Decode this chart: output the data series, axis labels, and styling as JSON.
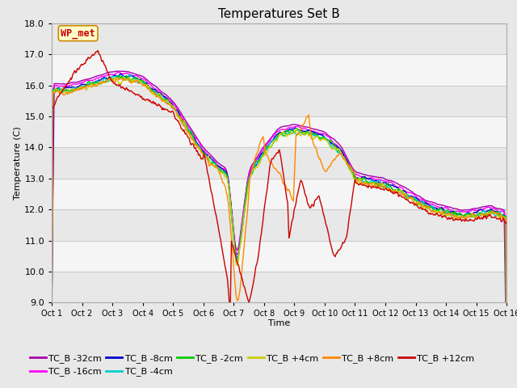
{
  "title": "Temperatures Set B",
  "xlabel": "Time",
  "ylabel": "Temperature (C)",
  "ylim": [
    9.0,
    18.0
  ],
  "yticks": [
    9.0,
    10.0,
    11.0,
    12.0,
    13.0,
    14.0,
    15.0,
    16.0,
    17.0,
    18.0
  ],
  "xtick_labels": [
    "Oct 1",
    "Oct 2",
    "Oct 3",
    "Oct 4",
    "Oct 5",
    "Oct 6",
    "Oct 7",
    "Oct 8",
    "Oct 9",
    "Oct 10",
    "Oct 11",
    "Oct 12",
    "Oct 13",
    "Oct 14",
    "Oct 15",
    "Oct 16"
  ],
  "bg_color": "#e8e8e8",
  "plot_bg_color": "#ffffff",
  "grid_color": "#cccccc",
  "wp_met_label": "WP_met",
  "wp_met_text_color": "#cc0000",
  "wp_met_bg": "#ffffcc",
  "wp_met_edge": "#cc8800",
  "series": [
    {
      "label": "TC_B -32cm",
      "color": "#aa00aa"
    },
    {
      "label": "TC_B -16cm",
      "color": "#ff00ff"
    },
    {
      "label": "TC_B -8cm",
      "color": "#0000cc"
    },
    {
      "label": "TC_B -4cm",
      "color": "#00cccc"
    },
    {
      "label": "TC_B -2cm",
      "color": "#00cc00"
    },
    {
      "label": "TC_B +4cm",
      "color": "#cccc00"
    },
    {
      "label": "TC_B +8cm",
      "color": "#ff8800"
    },
    {
      "label": "TC_B +12cm",
      "color": "#cc0000"
    }
  ],
  "title_fontsize": 11,
  "axis_fontsize": 8,
  "tick_fontsize": 8,
  "legend_fontsize": 8
}
